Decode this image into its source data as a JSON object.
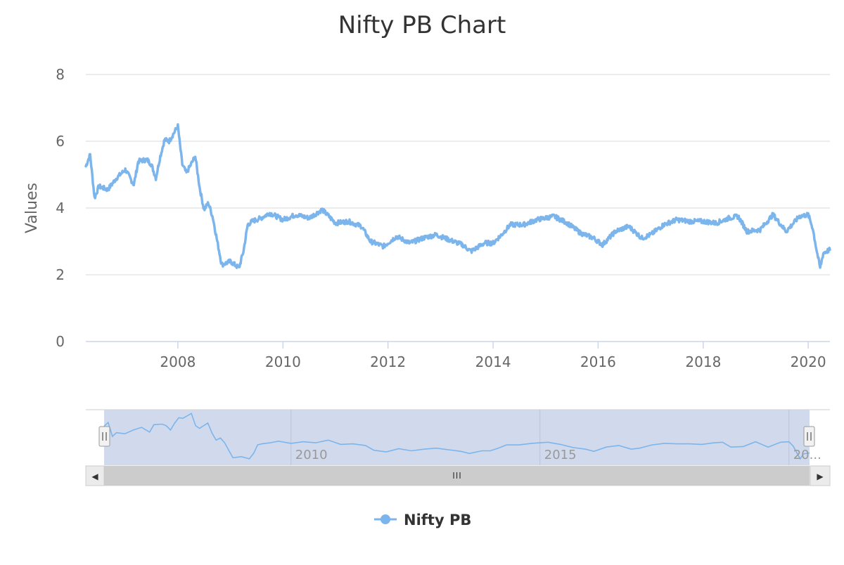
{
  "chart_data": {
    "type": "line",
    "title": "Nifty PB Chart",
    "xlabel": "",
    "ylabel": "Values",
    "x_ticks": [
      "2008",
      "2010",
      "2012",
      "2014",
      "2016",
      "2018",
      "2020"
    ],
    "y_ticks": [
      "0",
      "2",
      "4",
      "6",
      "8"
    ],
    "ylim": [
      0,
      8
    ],
    "xlim": [
      "2006-04-01",
      "2020-05-31"
    ],
    "grid": true,
    "legend": "bottom-center",
    "navigator_ticks": [
      "2010",
      "2015",
      "20..."
    ],
    "series": [
      {
        "name": "Nifty PB",
        "color": "#7cb5ec",
        "points": [
          [
            "2006-04-01",
            5.25
          ],
          [
            "2006-05-01",
            5.6
          ],
          [
            "2006-06-01",
            4.3
          ],
          [
            "2006-07-01",
            4.65
          ],
          [
            "2006-09-01",
            4.55
          ],
          [
            "2006-11-01",
            4.9
          ],
          [
            "2007-01-01",
            5.15
          ],
          [
            "2007-03-01",
            4.7
          ],
          [
            "2007-04-01",
            5.4
          ],
          [
            "2007-06-01",
            5.45
          ],
          [
            "2007-07-01",
            5.3
          ],
          [
            "2007-08-01",
            4.9
          ],
          [
            "2007-09-01",
            5.55
          ],
          [
            "2007-10-01",
            6.05
          ],
          [
            "2007-11-01",
            6.0
          ],
          [
            "2008-01-01",
            6.45
          ],
          [
            "2008-02-01",
            5.3
          ],
          [
            "2008-03-01",
            5.05
          ],
          [
            "2008-05-01",
            5.55
          ],
          [
            "2008-06-01",
            4.6
          ],
          [
            "2008-07-01",
            3.95
          ],
          [
            "2008-08-01",
            4.15
          ],
          [
            "2008-09-01",
            3.7
          ],
          [
            "2008-10-01",
            3.0
          ],
          [
            "2008-11-01",
            2.3
          ],
          [
            "2009-01-01",
            2.4
          ],
          [
            "2009-03-01",
            2.2
          ],
          [
            "2009-04-01",
            2.7
          ],
          [
            "2009-05-01",
            3.5
          ],
          [
            "2009-06-01",
            3.6
          ],
          [
            "2009-08-01",
            3.7
          ],
          [
            "2009-10-01",
            3.85
          ],
          [
            "2010-01-01",
            3.65
          ],
          [
            "2010-04-01",
            3.8
          ],
          [
            "2010-07-01",
            3.7
          ],
          [
            "2010-10-01",
            3.95
          ],
          [
            "2011-01-01",
            3.55
          ],
          [
            "2011-04-01",
            3.6
          ],
          [
            "2011-07-01",
            3.45
          ],
          [
            "2011-09-01",
            3.0
          ],
          [
            "2011-12-01",
            2.85
          ],
          [
            "2012-03-01",
            3.15
          ],
          [
            "2012-06-01",
            2.95
          ],
          [
            "2012-09-01",
            3.1
          ],
          [
            "2012-12-01",
            3.2
          ],
          [
            "2013-03-01",
            3.05
          ],
          [
            "2013-06-01",
            2.9
          ],
          [
            "2013-08-01",
            2.7
          ],
          [
            "2013-11-01",
            2.95
          ],
          [
            "2014-01-01",
            2.95
          ],
          [
            "2014-03-01",
            3.2
          ],
          [
            "2014-05-01",
            3.5
          ],
          [
            "2014-08-01",
            3.5
          ],
          [
            "2014-11-01",
            3.65
          ],
          [
            "2015-03-01",
            3.75
          ],
          [
            "2015-06-01",
            3.55
          ],
          [
            "2015-09-01",
            3.25
          ],
          [
            "2015-12-01",
            3.1
          ],
          [
            "2016-02-01",
            2.9
          ],
          [
            "2016-05-01",
            3.3
          ],
          [
            "2016-08-01",
            3.45
          ],
          [
            "2016-11-01",
            3.1
          ],
          [
            "2017-01-01",
            3.2
          ],
          [
            "2017-04-01",
            3.5
          ],
          [
            "2017-07-01",
            3.65
          ],
          [
            "2017-10-01",
            3.6
          ],
          [
            "2018-01-01",
            3.6
          ],
          [
            "2018-04-01",
            3.55
          ],
          [
            "2018-07-01",
            3.7
          ],
          [
            "2018-09-01",
            3.75
          ],
          [
            "2018-11-01",
            3.3
          ],
          [
            "2019-02-01",
            3.35
          ],
          [
            "2019-05-01",
            3.8
          ],
          [
            "2019-08-01",
            3.3
          ],
          [
            "2019-11-01",
            3.75
          ],
          [
            "2020-01-01",
            3.8
          ],
          [
            "2020-02-01",
            3.4
          ],
          [
            "2020-03-01",
            2.7
          ],
          [
            "2020-03-24",
            2.2
          ],
          [
            "2020-04-15",
            2.65
          ],
          [
            "2020-05-31",
            2.75
          ]
        ]
      }
    ]
  },
  "navigator": {
    "left_arrow": "◀",
    "right_arrow": "▶",
    "grip": "III",
    "handle_grip": "||"
  }
}
